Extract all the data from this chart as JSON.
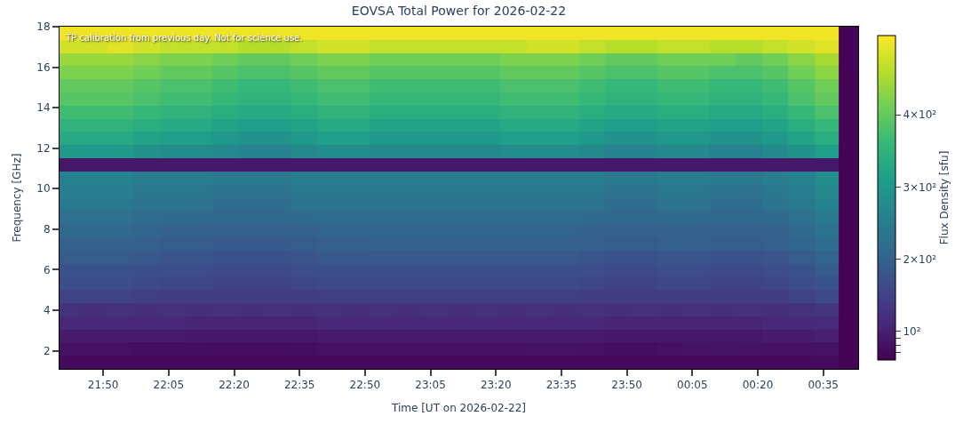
{
  "chart_data": {
    "type": "heatmap",
    "title": "EOVSA Total Power for 2026-02-22",
    "xlabel": "Time [UT on 2026-02-22]",
    "ylabel": "Frequency [GHz]",
    "clabel": "Flux Density [sfu]",
    "annotations": [
      "TP calibration from previous day. Not for science use."
    ],
    "x": [
      "2026-02-22T21:42",
      "2026-02-22T21:48",
      "2026-02-22T21:54",
      "2026-02-22T22:00",
      "2026-02-22T22:06",
      "2026-02-22T22:12",
      "2026-02-22T22:18",
      "2026-02-22T22:24",
      "2026-02-22T22:30",
      "2026-02-22T22:36",
      "2026-02-22T22:42",
      "2026-02-22T22:48",
      "2026-02-22T22:54",
      "2026-02-22T23:00",
      "2026-02-22T23:06",
      "2026-02-22T23:12",
      "2026-02-22T23:18",
      "2026-02-22T23:24",
      "2026-02-22T23:30",
      "2026-02-22T23:36",
      "2026-02-22T23:42",
      "2026-02-22T23:48",
      "2026-02-22T23:54",
      "2026-02-23T00:00",
      "2026-02-23T00:06",
      "2026-02-23T00:12",
      "2026-02-23T00:18",
      "2026-02-23T00:24",
      "2026-02-23T00:30",
      "2026-02-23T00:36",
      "2026-02-23T00:41"
    ],
    "xlim": [
      "2026-02-22T21:40",
      "2026-02-23T00:43"
    ],
    "xticks": [
      {
        "value": "2026-02-22T21:50",
        "label": "21:50"
      },
      {
        "value": "2026-02-22T22:05",
        "label": "22:05"
      },
      {
        "value": "2026-02-22T22:20",
        "label": "22:20"
      },
      {
        "value": "2026-02-22T22:35",
        "label": "22:35"
      },
      {
        "value": "2026-02-22T22:50",
        "label": "22:50"
      },
      {
        "value": "2026-02-22T23:05",
        "label": "23:05"
      },
      {
        "value": "2026-02-22T23:20",
        "label": "23:20"
      },
      {
        "value": "2026-02-22T23:35",
        "label": "23:35"
      },
      {
        "value": "2026-02-22T23:50",
        "label": "23:50"
      },
      {
        "value": "2026-02-23T00:05",
        "label": "00:05"
      },
      {
        "value": "2026-02-23T00:20",
        "label": "00:20"
      },
      {
        "value": "2026-02-23T00:35",
        "label": "00:35"
      }
    ],
    "ylim": [
      1.1,
      18
    ],
    "yticks": [
      2,
      4,
      6,
      8,
      10,
      12,
      14,
      16,
      18
    ],
    "clim": [
      60,
      510
    ],
    "cticks": [
      {
        "value": 70,
        "label": null
      },
      {
        "value": 80,
        "label": null
      },
      {
        "value": 90,
        "label": null
      },
      {
        "value": 100,
        "label": "10²"
      },
      {
        "value": 200,
        "label": "2×10²"
      },
      {
        "value": 300,
        "label": "3×10²"
      },
      {
        "value": 400,
        "label": "4×10²"
      }
    ],
    "cells": [
      [
        500,
        500,
        500,
        500,
        500,
        500,
        500,
        500,
        500,
        500,
        500,
        500,
        500,
        500,
        500,
        500,
        500,
        500,
        500,
        500,
        500,
        500,
        500,
        500,
        500,
        500,
        500,
        500,
        500,
        500,
        62
      ],
      [
        480,
        480,
        490,
        480,
        470,
        470,
        470,
        460,
        460,
        470,
        480,
        480,
        470,
        470,
        470,
        470,
        470,
        470,
        480,
        480,
        470,
        460,
        460,
        470,
        470,
        460,
        460,
        470,
        480,
        490,
        62
      ],
      [
        440,
        440,
        440,
        430,
        420,
        420,
        410,
        400,
        400,
        410,
        420,
        420,
        410,
        410,
        410,
        410,
        410,
        420,
        420,
        420,
        410,
        400,
        400,
        410,
        410,
        410,
        400,
        410,
        430,
        450,
        62
      ],
      [
        420,
        420,
        420,
        410,
        400,
        400,
        390,
        380,
        380,
        390,
        400,
        400,
        390,
        390,
        390,
        390,
        390,
        400,
        400,
        400,
        390,
        380,
        380,
        390,
        390,
        380,
        380,
        390,
        410,
        430,
        62
      ],
      [
        400,
        400,
        400,
        390,
        380,
        380,
        370,
        360,
        360,
        370,
        380,
        380,
        370,
        370,
        370,
        370,
        370,
        380,
        380,
        380,
        370,
        360,
        360,
        370,
        370,
        360,
        360,
        370,
        390,
        410,
        62
      ],
      [
        390,
        390,
        390,
        380,
        370,
        370,
        360,
        350,
        350,
        360,
        370,
        370,
        360,
        360,
        360,
        360,
        360,
        370,
        370,
        370,
        360,
        350,
        350,
        360,
        360,
        350,
        350,
        360,
        380,
        400,
        62
      ],
      [
        370,
        370,
        370,
        360,
        350,
        350,
        340,
        330,
        330,
        340,
        350,
        350,
        340,
        340,
        340,
        340,
        340,
        350,
        350,
        350,
        340,
        330,
        330,
        340,
        340,
        330,
        330,
        340,
        360,
        380,
        62
      ],
      [
        350,
        350,
        350,
        340,
        330,
        330,
        320,
        310,
        310,
        320,
        330,
        330,
        320,
        320,
        320,
        320,
        320,
        330,
        330,
        330,
        320,
        310,
        310,
        320,
        320,
        310,
        310,
        320,
        340,
        360,
        62
      ],
      [
        330,
        330,
        330,
        320,
        310,
        310,
        300,
        290,
        290,
        300,
        310,
        310,
        300,
        300,
        300,
        300,
        300,
        310,
        310,
        310,
        300,
        290,
        290,
        300,
        300,
        290,
        290,
        300,
        320,
        340,
        62
      ],
      [
        300,
        300,
        300,
        290,
        280,
        280,
        270,
        260,
        260,
        270,
        280,
        280,
        270,
        270,
        270,
        270,
        270,
        280,
        280,
        280,
        270,
        260,
        260,
        270,
        270,
        260,
        260,
        270,
        290,
        310,
        62
      ],
      [
        90,
        90,
        90,
        90,
        90,
        90,
        90,
        90,
        90,
        90,
        90,
        90,
        90,
        90,
        90,
        90,
        90,
        90,
        90,
        90,
        90,
        90,
        90,
        90,
        90,
        90,
        90,
        90,
        90,
        90,
        62
      ],
      [
        260,
        260,
        260,
        250,
        250,
        250,
        240,
        240,
        240,
        250,
        250,
        250,
        250,
        250,
        250,
        250,
        250,
        250,
        250,
        250,
        250,
        240,
        240,
        250,
        250,
        240,
        240,
        250,
        260,
        280,
        62
      ],
      [
        250,
        250,
        250,
        240,
        240,
        240,
        230,
        230,
        230,
        240,
        240,
        240,
        240,
        240,
        240,
        240,
        240,
        240,
        240,
        240,
        240,
        230,
        230,
        240,
        240,
        230,
        230,
        240,
        250,
        270,
        62
      ],
      [
        240,
        240,
        240,
        230,
        230,
        230,
        220,
        220,
        220,
        230,
        230,
        230,
        230,
        230,
        230,
        230,
        230,
        230,
        230,
        230,
        230,
        220,
        220,
        230,
        230,
        220,
        220,
        230,
        240,
        260,
        62
      ],
      [
        225,
        225,
        225,
        220,
        215,
        215,
        210,
        210,
        210,
        215,
        220,
        220,
        220,
        220,
        220,
        220,
        220,
        220,
        220,
        220,
        215,
        210,
        210,
        215,
        215,
        210,
        210,
        215,
        225,
        245,
        62
      ],
      [
        210,
        210,
        210,
        205,
        200,
        200,
        195,
        195,
        195,
        200,
        205,
        205,
        205,
        205,
        205,
        205,
        205,
        205,
        205,
        205,
        200,
        195,
        195,
        200,
        200,
        195,
        195,
        200,
        210,
        230,
        62
      ],
      [
        200,
        200,
        200,
        195,
        190,
        190,
        185,
        185,
        185,
        190,
        195,
        195,
        200,
        200,
        200,
        200,
        200,
        200,
        200,
        200,
        195,
        190,
        190,
        195,
        195,
        190,
        190,
        195,
        205,
        220,
        62
      ],
      [
        190,
        190,
        190,
        185,
        180,
        180,
        175,
        175,
        175,
        180,
        185,
        185,
        185,
        185,
        185,
        185,
        185,
        185,
        185,
        185,
        180,
        175,
        175,
        180,
        180,
        175,
        175,
        180,
        190,
        205,
        62
      ],
      [
        175,
        175,
        175,
        170,
        165,
        165,
        160,
        160,
        160,
        165,
        170,
        170,
        170,
        170,
        170,
        170,
        170,
        170,
        170,
        170,
        165,
        160,
        160,
        165,
        165,
        160,
        160,
        165,
        175,
        190,
        62
      ],
      [
        165,
        165,
        165,
        160,
        155,
        155,
        150,
        150,
        150,
        155,
        160,
        160,
        160,
        160,
        160,
        160,
        160,
        160,
        160,
        160,
        155,
        150,
        150,
        155,
        155,
        150,
        150,
        155,
        165,
        175,
        62
      ],
      [
        150,
        150,
        150,
        145,
        140,
        140,
        140,
        140,
        140,
        140,
        145,
        145,
        145,
        145,
        145,
        145,
        145,
        145,
        145,
        145,
        140,
        140,
        140,
        140,
        140,
        140,
        140,
        140,
        150,
        160,
        62
      ],
      [
        125,
        120,
        125,
        120,
        125,
        120,
        125,
        120,
        125,
        120,
        125,
        120,
        125,
        120,
        125,
        120,
        125,
        120,
        125,
        120,
        125,
        120,
        125,
        120,
        125,
        120,
        125,
        120,
        125,
        130,
        62
      ],
      [
        110,
        110,
        110,
        110,
        110,
        105,
        105,
        105,
        105,
        105,
        110,
        110,
        110,
        110,
        110,
        110,
        110,
        110,
        110,
        110,
        110,
        105,
        105,
        105,
        105,
        105,
        105,
        110,
        110,
        115,
        62
      ],
      [
        95,
        95,
        95,
        95,
        95,
        90,
        90,
        90,
        90,
        90,
        95,
        95,
        95,
        95,
        95,
        95,
        95,
        95,
        95,
        95,
        95,
        90,
        90,
        90,
        90,
        90,
        90,
        95,
        95,
        100,
        62
      ],
      [
        80,
        80,
        80,
        78,
        78,
        78,
        76,
        76,
        76,
        78,
        80,
        80,
        80,
        80,
        80,
        80,
        80,
        80,
        82,
        82,
        80,
        78,
        78,
        80,
        82,
        84,
        82,
        80,
        80,
        82,
        62
      ],
      [
        72,
        72,
        72,
        70,
        70,
        70,
        70,
        70,
        70,
        70,
        72,
        72,
        72,
        72,
        72,
        72,
        72,
        72,
        72,
        72,
        72,
        70,
        70,
        70,
        72,
        72,
        72,
        72,
        72,
        74,
        62
      ]
    ]
  }
}
